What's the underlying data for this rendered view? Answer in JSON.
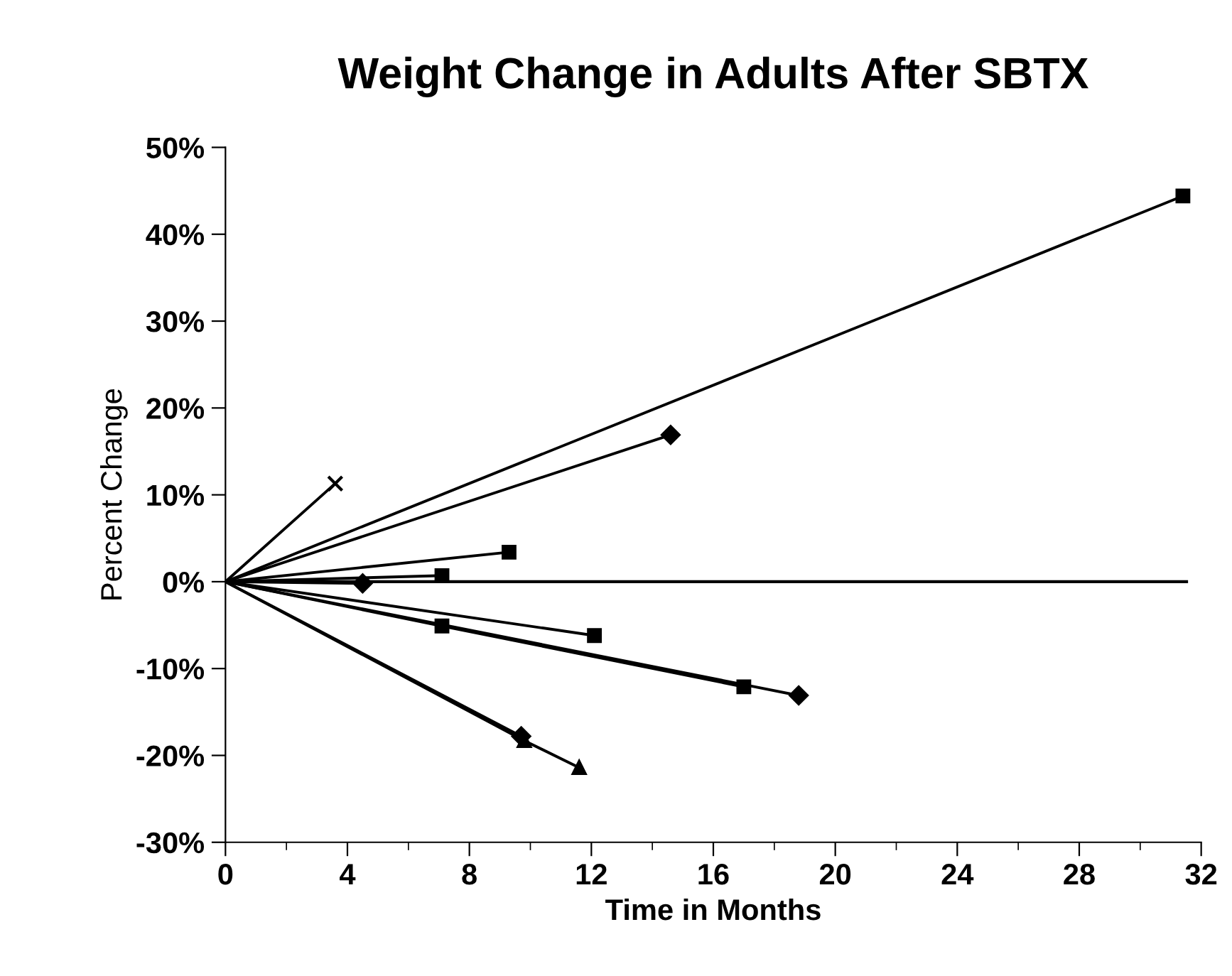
{
  "chart_data": {
    "type": "line",
    "title": "Weight Change in Adults After SBTX",
    "xlabel": "Time in Months",
    "ylabel": "Percent Change",
    "xlim": [
      0,
      32
    ],
    "xticks": [
      0,
      4,
      8,
      12,
      16,
      20,
      24,
      28,
      32
    ],
    "ylim": [
      -30,
      50
    ],
    "yticks": [
      {
        "value": -30,
        "label": "-30%"
      },
      {
        "value": -20,
        "label": "-20%"
      },
      {
        "value": -10,
        "label": "-10%"
      },
      {
        "value": 0,
        "label": "0%"
      },
      {
        "value": 10,
        "label": "10%"
      },
      {
        "value": 20,
        "label": "20%"
      },
      {
        "value": 30,
        "label": "30%"
      },
      {
        "value": 40,
        "label": "40%"
      },
      {
        "value": 50,
        "label": "50%"
      }
    ],
    "grid": false,
    "legend": false,
    "line_style": "solid",
    "ref_lines": [
      {
        "axis": "y",
        "value": 0,
        "color": "#000000"
      }
    ],
    "series": [
      {
        "color": "#000000",
        "x": [
          0,
          31.4
        ],
        "values": [
          0,
          44.4
        ],
        "marker": "square"
      },
      {
        "color": "#000000",
        "x": [
          0,
          14.6
        ],
        "values": [
          0,
          16.9
        ],
        "marker": "diamond"
      },
      {
        "color": "#000000",
        "x": [
          0,
          3.6
        ],
        "values": [
          0,
          11.3
        ],
        "marker": "cross"
      },
      {
        "color": "#000000",
        "x": [
          0,
          9.3
        ],
        "values": [
          0,
          3.4
        ],
        "marker": "square"
      },
      {
        "color": "#000000",
        "x": [
          0,
          7.1
        ],
        "values": [
          0,
          0.7
        ],
        "marker": "square"
      },
      {
        "color": "#000000",
        "x": [
          0,
          4.5
        ],
        "values": [
          0,
          -0.2
        ],
        "marker": "diamond"
      },
      {
        "color": "#000000",
        "x": [
          0,
          12.1
        ],
        "values": [
          0,
          -6.2
        ],
        "marker": "square"
      },
      {
        "color": "#000000",
        "x": [
          0,
          7.1,
          17.0
        ],
        "values": [
          0,
          -5.1,
          -12.1
        ],
        "marker": "square"
      },
      {
        "color": "#000000",
        "x": [
          0,
          18.8
        ],
        "values": [
          0,
          -13.1
        ],
        "marker": "diamond"
      },
      {
        "color": "#000000",
        "x": [
          0,
          9.7
        ],
        "values": [
          0,
          -17.8
        ],
        "marker": "diamond"
      },
      {
        "color": "#000000",
        "x": [
          0,
          9.8,
          11.6
        ],
        "values": [
          0,
          -18.3,
          -21.4
        ],
        "marker": "triangle"
      }
    ]
  }
}
